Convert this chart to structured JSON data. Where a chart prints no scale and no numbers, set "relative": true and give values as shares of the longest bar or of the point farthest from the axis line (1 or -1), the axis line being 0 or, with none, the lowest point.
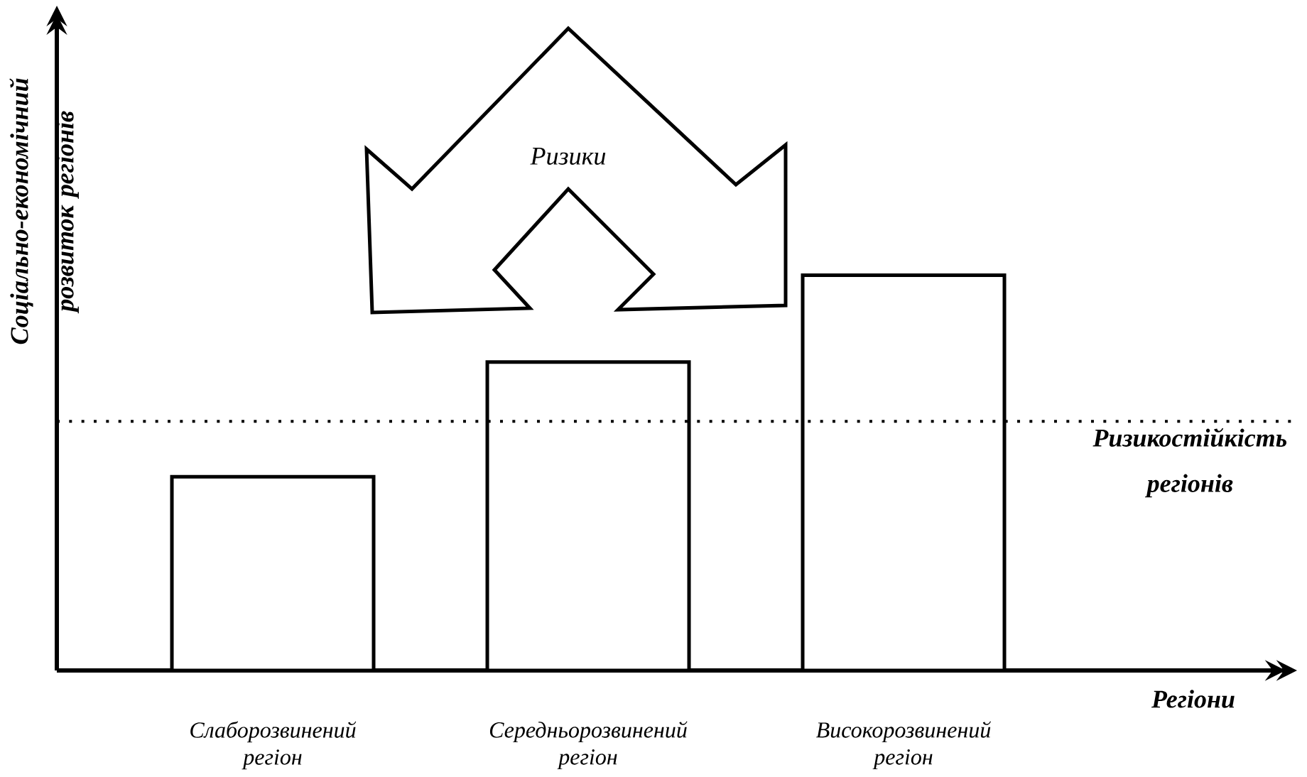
{
  "chart_data": {
    "type": "bar",
    "relative": true,
    "categories": [
      "Слаборозвинений регіон",
      "Середньорозвинений регіон",
      "Високорозвинений регіон"
    ],
    "values": [
      0.49,
      0.78,
      1
    ],
    "color": "#ffffff",
    "xlabel": "Регіони",
    "ylabel": "Соціально-економічний розвиток регіонів",
    "ref_lines": [
      {
        "axis": "y",
        "value": 0.63,
        "label": "Ризикостійкість регіонів",
        "line_style": "dotted",
        "color": "#000000"
      }
    ],
    "annotations": [
      "Ризики"
    ]
  }
}
